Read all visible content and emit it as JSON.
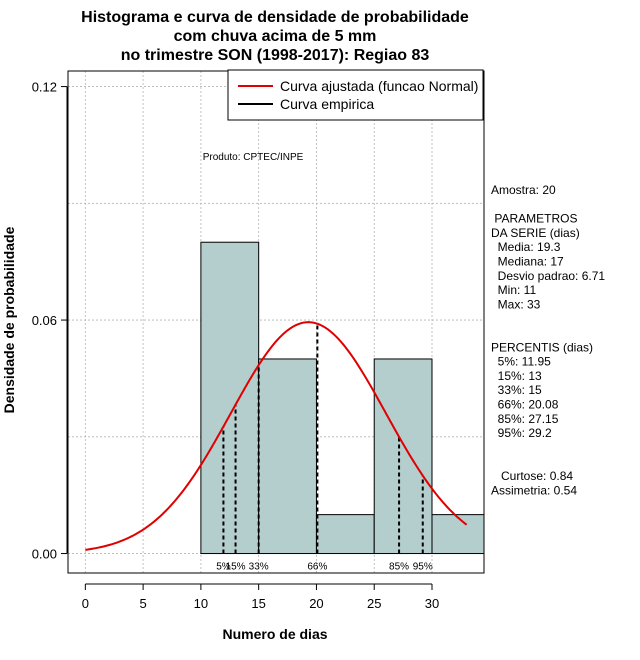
{
  "chart_data": {
    "type": "bar",
    "title_lines": [
      "Histograma e curva de densidade de probabilidade",
      "com chuva acima de 5 mm",
      "no trimestre SON (1998-2017): Regiao 83"
    ],
    "xlabel": "Numero de dias",
    "ylabel": "Densidade de probabilidade",
    "xlim": [
      -1.5,
      34.5
    ],
    "ylim": [
      -0.005,
      0.124
    ],
    "x_ticks": [
      0,
      5,
      10,
      15,
      20,
      25,
      30
    ],
    "y_ticks": [
      0.0,
      0.06,
      0.12
    ],
    "y_tick_labels": [
      "0.00",
      "0.06",
      "0.12"
    ],
    "grid": true,
    "histogram": {
      "bins": [
        {
          "from": 10,
          "to": 15,
          "density": 0.08
        },
        {
          "from": 15,
          "to": 20,
          "density": 0.05
        },
        {
          "from": 20,
          "to": 25,
          "density": 0.01
        },
        {
          "from": 25,
          "to": 30,
          "density": 0.05
        },
        {
          "from": 30,
          "to": 35,
          "density": 0.01
        }
      ],
      "fill_color": "#b4cdcd",
      "border_color": "#000000"
    },
    "normal_curve": {
      "name": "Curva ajustada (funcao Normal)",
      "mean": 19.3,
      "sd": 6.71,
      "x_range": [
        0,
        33
      ],
      "color": "#e00000"
    },
    "empirical_curve": {
      "name": "Curva empirica",
      "color": "#000000"
    },
    "legend_position": "top-right",
    "percentile_lines": [
      {
        "label": "5%",
        "x": 11.95
      },
      {
        "label": "15%",
        "x": 13
      },
      {
        "label": "33%",
        "x": 15
      },
      {
        "label": "66%",
        "x": 20.08
      },
      {
        "label": "85%",
        "x": 27.15
      },
      {
        "label": "95%",
        "x": 29.2
      }
    ],
    "annotation": "Produto: CPTEC/INPE"
  },
  "side_panel": {
    "lines": [
      "Amostra: 20",
      "",
      " PARAMETROS",
      "DA SERIE (dias)",
      "  Media: 19.3",
      "  Mediana: 17",
      "  Desvio padrao: 6.71",
      "  Min: 11",
      "  Max: 33",
      "",
      "",
      "PERCENTIS (dias)",
      "  5%: 11.95",
      "  15%: 13",
      "  33%: 15",
      "  66%: 20.08",
      "  85%: 27.15",
      "  95%: 29.2",
      "",
      "",
      "   Curtose: 0.84",
      "Assimetria: 0.54"
    ]
  }
}
